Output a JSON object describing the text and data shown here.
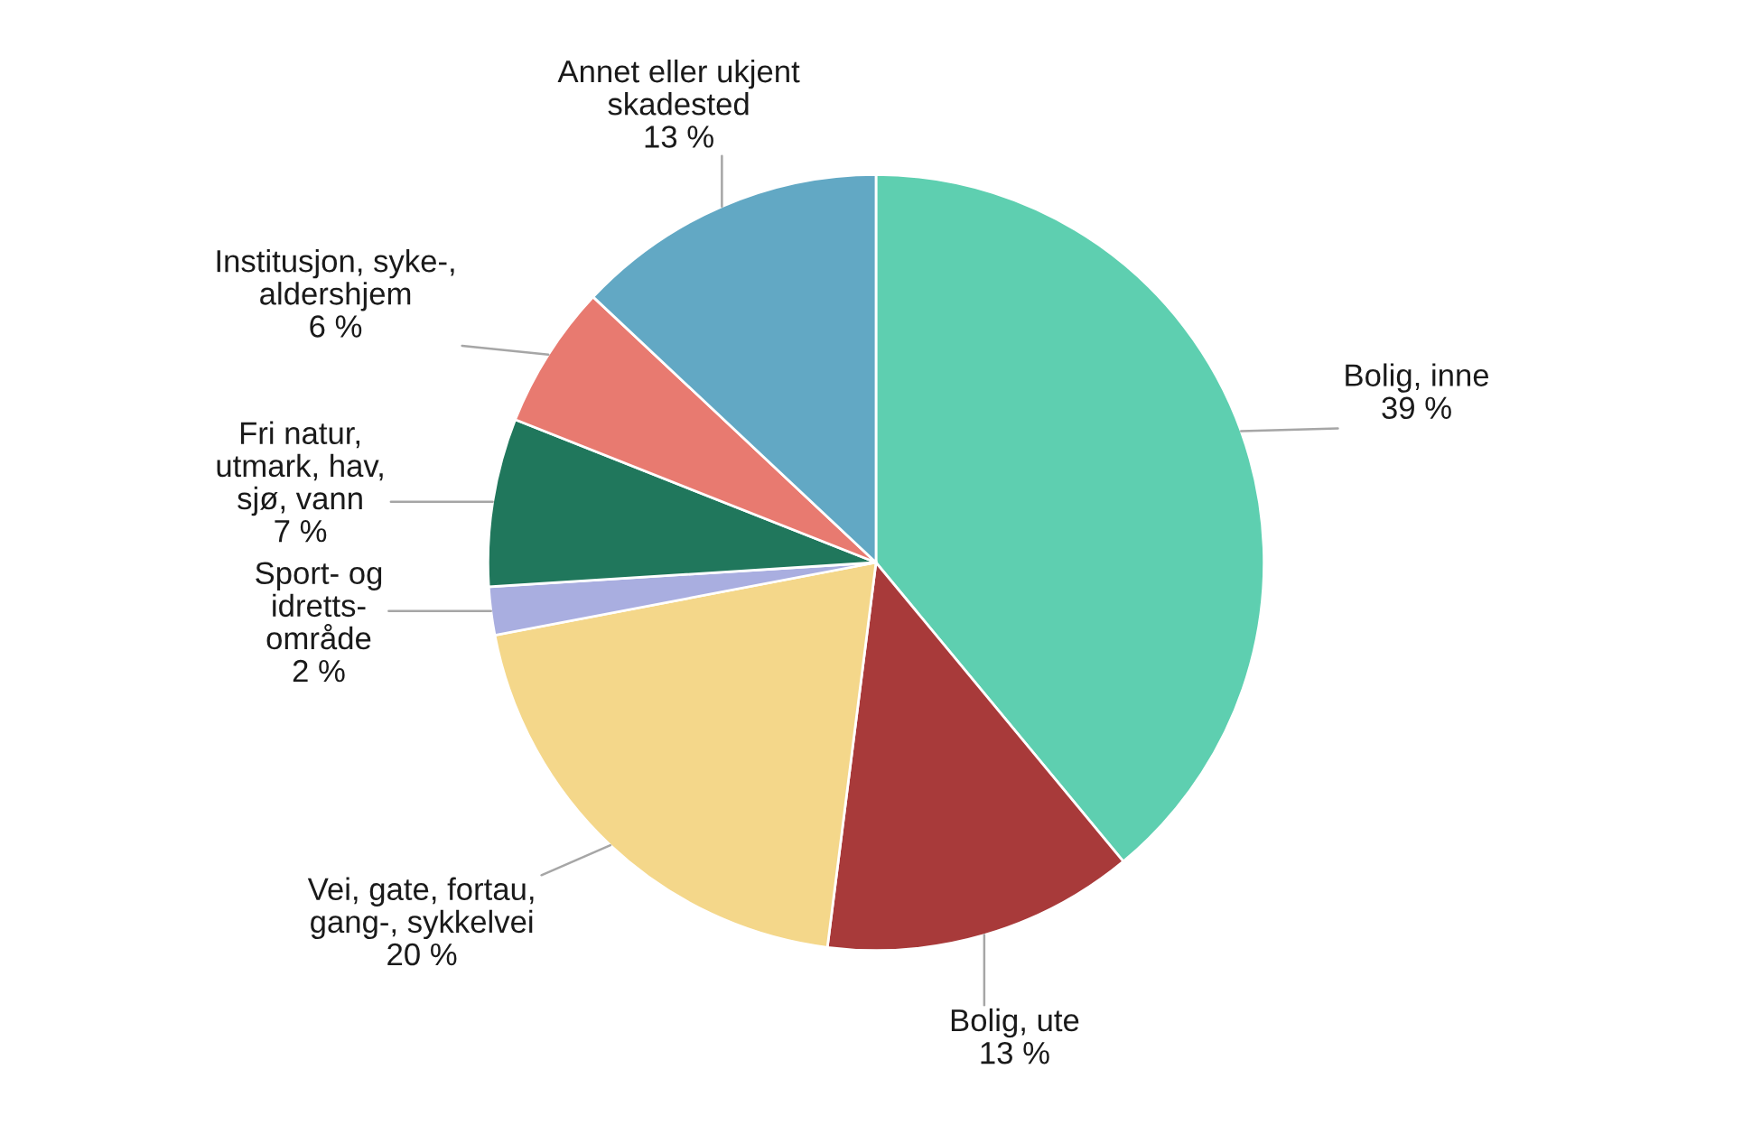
{
  "chart_data": {
    "type": "pie",
    "categories": [
      "Bolig, inne",
      "Bolig, ute",
      "Vei, gate, fortau,\ngang-, sykkelvei",
      "Sport- og\nidretts-\nområde",
      "Fri natur,\nutmark, hav,\nsjø, vann",
      "Institusjon, syke-,\naldershjem",
      "Annet eller ukjent\nskadested"
    ],
    "values": [
      39,
      13,
      20,
      2,
      7,
      6,
      13
    ],
    "value_labels": [
      "39 %",
      "13 %",
      "20 %",
      "2 %",
      "7 %",
      "6 %",
      "13 %"
    ],
    "colors": [
      "#5ecfb0",
      "#a83a3a",
      "#f4d78a",
      "#a9aee0",
      "#20775c",
      "#e87a70",
      "#62a8c4"
    ]
  }
}
